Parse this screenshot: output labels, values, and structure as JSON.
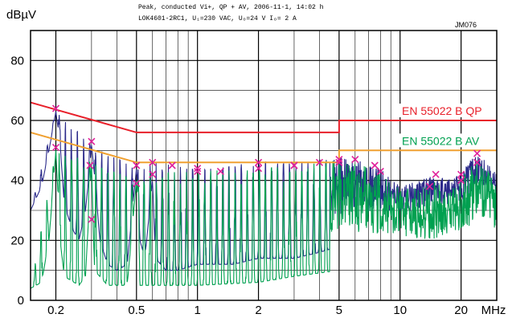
{
  "header": {
    "line1": "Peak, conducted Vi+, QP + AV, 2006-11-1, 14:02 h",
    "line2": "LOK4601-2RC1, U₁=230 VAC, Uₒ=24 V Iₒ= 2 A",
    "code": "JM076"
  },
  "chart_data": {
    "type": "line",
    "title": "",
    "ylabel": "dBµV",
    "xunit": "MHz",
    "xscale": "log",
    "xlim": [
      0.15,
      30
    ],
    "ylim": [
      0,
      90
    ],
    "grid": true,
    "x_ticks": [
      {
        "v": 0.2,
        "label": "0.2"
      },
      {
        "v": 0.5,
        "label": "0.5"
      },
      {
        "v": 1,
        "label": "1"
      },
      {
        "v": 2,
        "label": "2"
      },
      {
        "v": 5,
        "label": "5"
      },
      {
        "v": 10,
        "label": "10"
      },
      {
        "v": 20,
        "label": "20"
      }
    ],
    "y_ticks": [
      {
        "v": 0,
        "label": "0"
      },
      {
        "v": 20,
        "label": "20"
      },
      {
        "v": 40,
        "label": "40"
      },
      {
        "v": 60,
        "label": "60"
      },
      {
        "v": 80,
        "label": "80"
      }
    ],
    "minor_x_grid": [
      0.15,
      0.3,
      0.4,
      0.6,
      0.7,
      0.8,
      0.9,
      3,
      4,
      6,
      7,
      8,
      9,
      30
    ],
    "limit_lines": [
      {
        "name": "EN 55022 B QP",
        "color": "#e8202a",
        "points": [
          [
            0.15,
            66
          ],
          [
            0.5,
            56
          ],
          [
            5,
            56
          ],
          [
            5,
            60
          ],
          [
            30,
            60
          ]
        ]
      },
      {
        "name": "EN 55022 B AV",
        "color": "#f0a030",
        "points": [
          [
            0.15,
            56
          ],
          [
            0.5,
            46
          ],
          [
            5,
            46
          ],
          [
            5,
            50
          ],
          [
            30,
            50
          ]
        ]
      }
    ],
    "legend": [
      {
        "label": "EN 55022 B QP",
        "color": "#e8202a",
        "y": 60
      },
      {
        "label": "EN 55022 B AV",
        "color": "#00a050",
        "y": 50
      }
    ],
    "series": [
      {
        "id": "peak",
        "color": "#2b2a8a",
        "points": [
          [
            0.15,
            30
          ],
          [
            0.17,
            38
          ],
          [
            0.185,
            50
          ],
          [
            0.2,
            63
          ],
          [
            0.21,
            52
          ],
          [
            0.22,
            32
          ],
          [
            0.24,
            24
          ],
          [
            0.26,
            20
          ],
          [
            0.28,
            30
          ],
          [
            0.295,
            45
          ],
          [
            0.3,
            52
          ],
          [
            0.31,
            42
          ],
          [
            0.33,
            20
          ],
          [
            0.36,
            12
          ],
          [
            0.4,
            10
          ],
          [
            0.45,
            12
          ],
          [
            0.49,
            38
          ],
          [
            0.5,
            44
          ],
          [
            0.52,
            20
          ],
          [
            0.55,
            14
          ],
          [
            0.6,
            40
          ],
          [
            0.62,
            14
          ],
          [
            0.7,
            10
          ],
          [
            0.8,
            10
          ],
          [
            1.0,
            12
          ],
          [
            1.5,
            12
          ],
          [
            2.0,
            14
          ],
          [
            3.0,
            14
          ],
          [
            4.0,
            16
          ],
          [
            5.0,
            18
          ],
          [
            6.0,
            20
          ],
          [
            8.0,
            22
          ],
          [
            10.0,
            24
          ],
          [
            14.0,
            26
          ],
          [
            20.0,
            28
          ],
          [
            30.0,
            32
          ]
        ],
        "upper": [
          [
            0.15,
            30
          ],
          [
            0.2,
            63
          ],
          [
            0.3,
            52
          ],
          [
            0.5,
            44
          ],
          [
            0.6,
            46
          ],
          [
            1.0,
            44
          ],
          [
            2.0,
            46
          ],
          [
            3.0,
            46
          ],
          [
            4.0,
            47
          ],
          [
            5.0,
            48
          ],
          [
            6.0,
            47
          ],
          [
            8.0,
            44
          ],
          [
            10.0,
            38
          ],
          [
            12.0,
            40
          ],
          [
            15.0,
            42
          ],
          [
            17.0,
            40
          ],
          [
            20.0,
            42
          ],
          [
            23.0,
            49
          ],
          [
            26.0,
            47
          ],
          [
            30.0,
            42
          ]
        ]
      },
      {
        "id": "avg",
        "color": "#00a050",
        "points": [
          [
            0.15,
            4
          ],
          [
            0.17,
            6
          ],
          [
            0.185,
            20
          ],
          [
            0.2,
            50
          ],
          [
            0.21,
            20
          ],
          [
            0.22,
            8
          ],
          [
            0.26,
            5
          ],
          [
            0.28,
            8
          ],
          [
            0.3,
            46
          ],
          [
            0.31,
            10
          ],
          [
            0.36,
            5
          ],
          [
            0.45,
            5
          ],
          [
            0.5,
            40
          ],
          [
            0.52,
            5
          ],
          [
            0.6,
            5
          ],
          [
            1.0,
            5
          ],
          [
            2.0,
            6
          ],
          [
            3.0,
            8
          ],
          [
            5.0,
            10
          ],
          [
            7.0,
            10
          ],
          [
            10.0,
            12
          ],
          [
            15.0,
            10
          ],
          [
            20.0,
            14
          ],
          [
            30.0,
            15
          ]
        ],
        "upper": [
          [
            0.15,
            4
          ],
          [
            0.2,
            50
          ],
          [
            0.3,
            46
          ],
          [
            0.5,
            40
          ],
          [
            0.6,
            43
          ],
          [
            1.0,
            43
          ],
          [
            2.0,
            44
          ],
          [
            3.0,
            45
          ],
          [
            5.0,
            47
          ],
          [
            6.0,
            46
          ],
          [
            8.0,
            43
          ],
          [
            10.0,
            37
          ],
          [
            12.0,
            38
          ],
          [
            15.0,
            40
          ],
          [
            17.0,
            36
          ],
          [
            20.0,
            40
          ],
          [
            24.0,
            49
          ],
          [
            27.0,
            45
          ],
          [
            30.0,
            38
          ]
        ]
      }
    ],
    "qp_markers": [
      [
        0.2,
        64
      ],
      [
        0.295,
        45
      ],
      [
        0.3,
        53
      ],
      [
        0.5,
        45
      ],
      [
        0.6,
        46
      ],
      [
        0.75,
        45
      ],
      [
        1.0,
        44
      ],
      [
        1.3,
        43
      ],
      [
        2.0,
        46
      ],
      [
        3.0,
        45
      ],
      [
        4.0,
        46
      ],
      [
        5.0,
        47
      ],
      [
        6.0,
        47
      ],
      [
        7.5,
        45
      ],
      [
        15,
        42
      ],
      [
        20,
        42
      ],
      [
        24,
        49
      ]
    ],
    "av_markers": [
      [
        0.2,
        51
      ],
      [
        0.3,
        27
      ],
      [
        0.5,
        39
      ],
      [
        0.6,
        42
      ],
      [
        1.0,
        43
      ],
      [
        2.0,
        44
      ],
      [
        3.0,
        45
      ],
      [
        5.0,
        46
      ],
      [
        8.0,
        43
      ],
      [
        14,
        38
      ],
      [
        20,
        40
      ],
      [
        24,
        46
      ]
    ],
    "marker_color": "#e0209a"
  }
}
